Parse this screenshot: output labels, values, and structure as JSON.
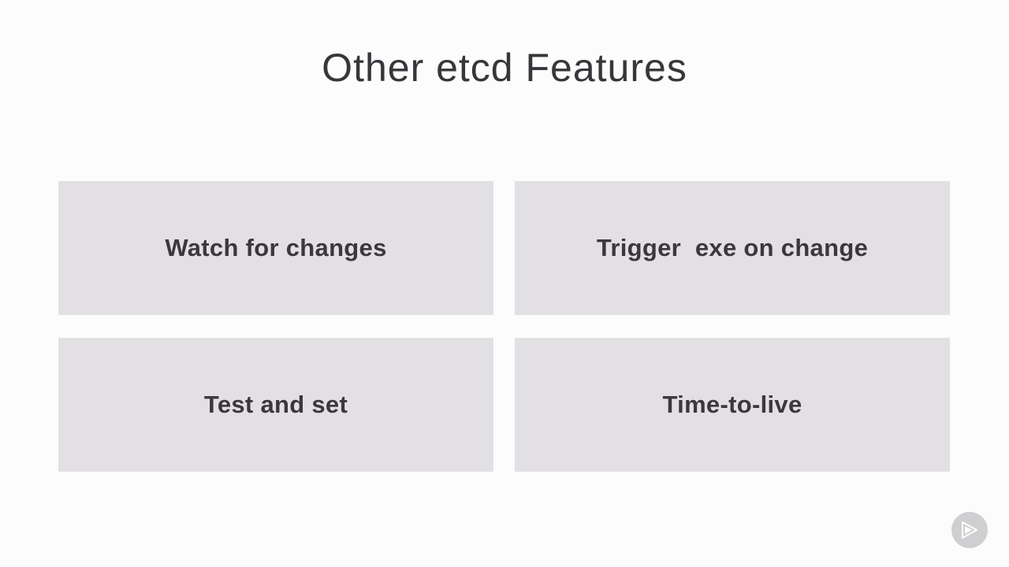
{
  "slide": {
    "title": "Other etcd Features",
    "features": [
      {
        "label": "Watch for changes"
      },
      {
        "label": "Trigger  exe on change"
      },
      {
        "label": "Test and set"
      },
      {
        "label": "Time-to-live"
      }
    ]
  },
  "colors": {
    "background": "#fcfcfc",
    "box": "#e2e0e3",
    "text": "#3a383c",
    "logo": "#cfcfd1"
  },
  "icons": {
    "corner_logo": "play-logo-icon"
  }
}
